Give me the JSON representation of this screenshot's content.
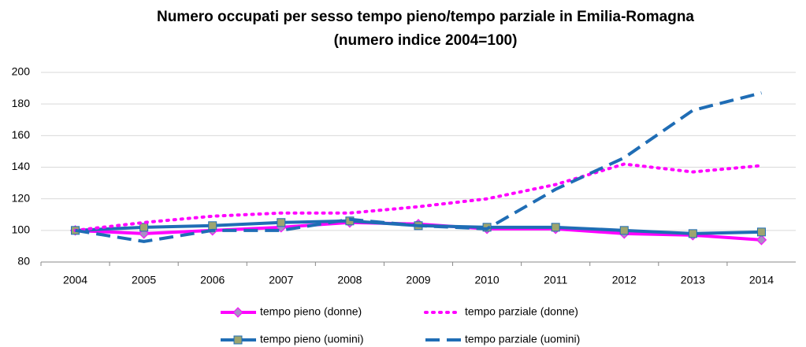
{
  "chart_data": {
    "type": "line",
    "title": "Numero occupati per sesso tempo pieno/tempo parziale in Emilia-Romagna",
    "subtitle": "(numero indice 2004=100)",
    "categories": [
      "2004",
      "2005",
      "2006",
      "2007",
      "2008",
      "2009",
      "2010",
      "2011",
      "2012",
      "2013",
      "2014"
    ],
    "series": [
      {
        "name": "tempo pieno (donne)",
        "color": "#ff00ff",
        "style": "solid",
        "marker": "diamond",
        "marker_color": "#a98fc6",
        "values": [
          100,
          98,
          100,
          102,
          105,
          104,
          101,
          101,
          98,
          97,
          94
        ]
      },
      {
        "name": "tempo parziale (donne)",
        "color": "#ff00ff",
        "style": "dotted",
        "values": [
          100,
          105,
          109,
          111,
          111,
          115,
          120,
          129,
          142,
          137,
          141
        ]
      },
      {
        "name": "tempo pieno (uomini)",
        "color": "#1f6db5",
        "style": "solid",
        "marker": "square",
        "marker_color": "#9da56f",
        "values": [
          100,
          102,
          103,
          105,
          106,
          103,
          102,
          102,
          100,
          98,
          99
        ]
      },
      {
        "name": "tempo parziale (uomini)",
        "color": "#1f6db5",
        "style": "dashed",
        "values": [
          100,
          93,
          100,
          100,
          107,
          103,
          101,
          126,
          146,
          176,
          187
        ]
      }
    ],
    "ylim": [
      80,
      200
    ],
    "yticks": [
      80,
      100,
      120,
      140,
      160,
      180,
      200
    ],
    "grid": true,
    "legend": "bottom"
  }
}
